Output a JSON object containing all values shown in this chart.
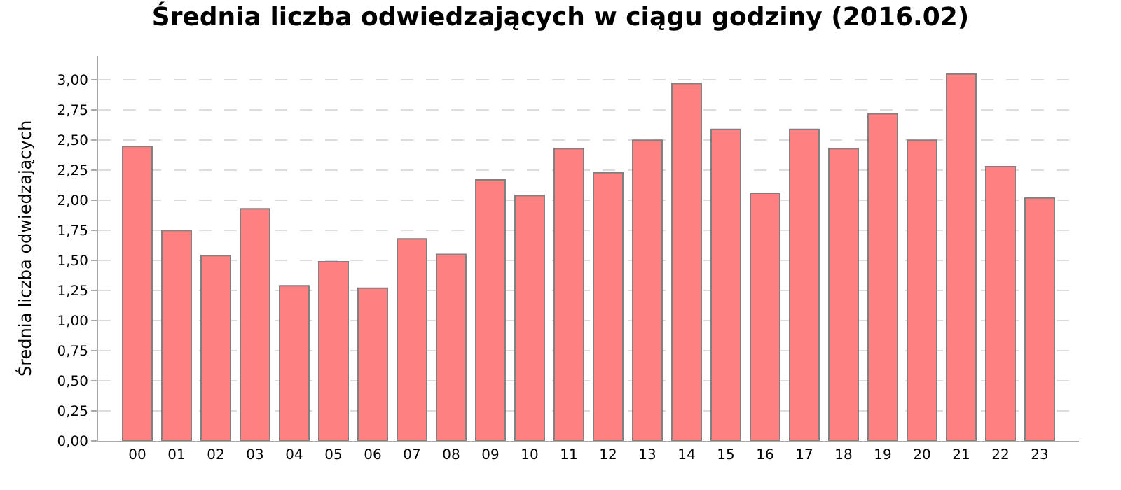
{
  "chart_data": {
    "type": "bar",
    "title": "Średnia liczba odwiedzających w ciągu godziny (2016.02)",
    "ylabel": "Średnia liczba odwiedzających",
    "categories": [
      "00",
      "01",
      "02",
      "03",
      "04",
      "05",
      "06",
      "07",
      "08",
      "09",
      "10",
      "11",
      "12",
      "13",
      "14",
      "15",
      "16",
      "17",
      "18",
      "19",
      "20",
      "21",
      "22",
      "23"
    ],
    "values": [
      2.45,
      1.75,
      1.54,
      1.93,
      1.29,
      1.49,
      1.27,
      1.68,
      1.55,
      2.17,
      2.04,
      2.43,
      2.23,
      2.5,
      2.97,
      2.59,
      2.06,
      2.59,
      2.43,
      2.72,
      2.5,
      3.05,
      2.28,
      2.02
    ],
    "color": "#ff8080",
    "ylim": [
      0,
      3.2
    ],
    "yticks": [
      {
        "value": 0,
        "label": "0,00"
      },
      {
        "value": 0.25,
        "label": "0,25"
      },
      {
        "value": 0.5,
        "label": "0,50"
      },
      {
        "value": 0.75,
        "label": "0,75"
      },
      {
        "value": 1,
        "label": "1,00"
      },
      {
        "value": 1.25,
        "label": "1,25"
      },
      {
        "value": 1.5,
        "label": "1,50"
      },
      {
        "value": 1.75,
        "label": "1,75"
      },
      {
        "value": 2,
        "label": "2,00"
      },
      {
        "value": 2.25,
        "label": "2,25"
      },
      {
        "value": 2.5,
        "label": "2,50"
      },
      {
        "value": 2.75,
        "label": "2,75"
      },
      {
        "value": 3,
        "label": "3,00"
      }
    ],
    "grid": "y"
  }
}
